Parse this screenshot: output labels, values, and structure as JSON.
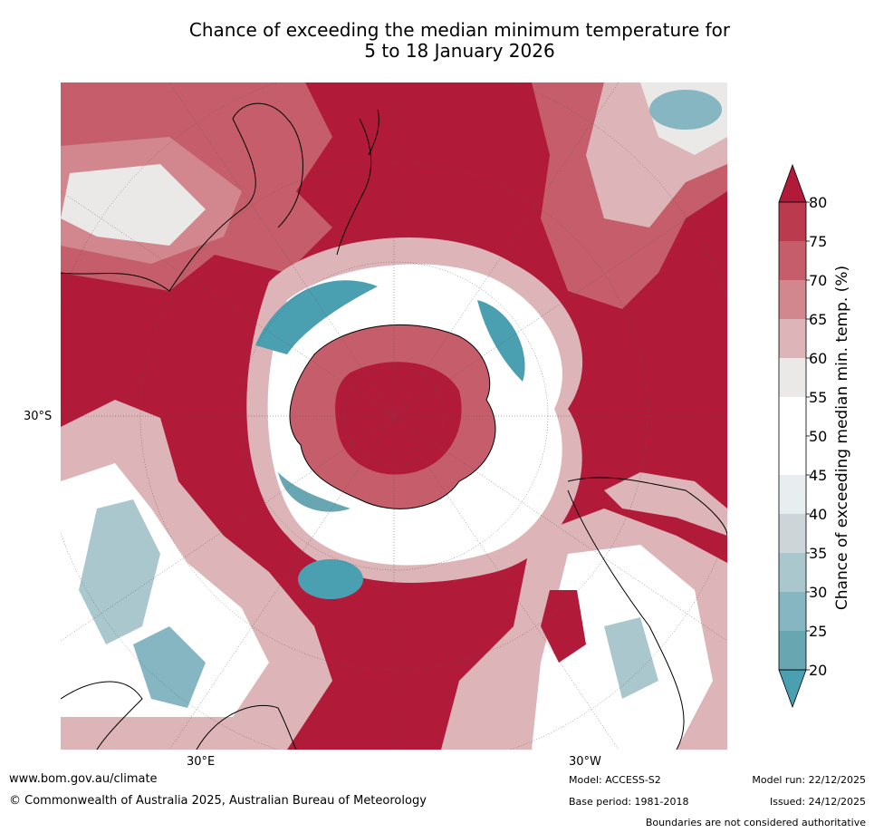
{
  "title_line1": "Chance of exceeding the median minimum temperature for",
  "title_line2": "5 to 18 January 2026",
  "axes": {
    "lat_label": "30°S",
    "lon_labels": [
      "30°E",
      "30°W"
    ]
  },
  "colorbar": {
    "label": "Chance of exceeding median min. temp. (%)",
    "ticks": [
      "80",
      "75",
      "70",
      "65",
      "60",
      "55",
      "50",
      "45",
      "40",
      "35",
      "30",
      "25",
      "20"
    ],
    "colors": {
      "above_80": "#b11b39",
      "75_80": "#bb3a4d",
      "70_75": "#c65d6a",
      "65_70": "#d2868d",
      "60_65": "#ddb5b8",
      "55_60": "#ebe8e8",
      "50_55": "#ffffff",
      "45_50": "#ffffff",
      "40_45": "#e8edef",
      "35_40": "#cdd5d8",
      "30_35": "#aac7cd",
      "25_30": "#86b6c1",
      "20_25": "#68a6b1",
      "below_20": "#4a9fb1"
    }
  },
  "footer": {
    "website": "www.bom.gov.au/climate",
    "copyright": "© Commonwealth of Australia 2025, Australian Bureau of Meteorology",
    "model": "Model: ACCESS-S2",
    "base_period": "Base period: 1981-2018",
    "model_run": "Model run: 22/12/2025",
    "issued": "Issued: 24/12/2025",
    "disclaimer": "Boundaries are not considered authoritative"
  }
}
